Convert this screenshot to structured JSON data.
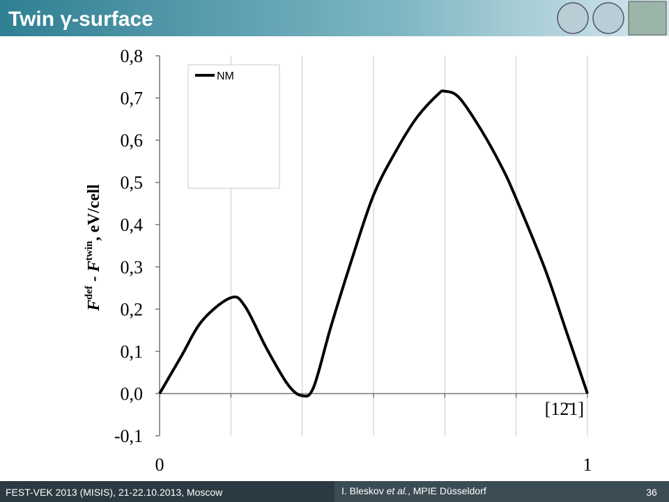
{
  "header": {
    "title": "Twin γ-surface"
  },
  "footer": {
    "event": "FEST-VEK 2013 (MISIS), 21-22.10.2013, Moscow",
    "author": [
      "I. Bleskov ",
      "et al.",
      ", MPIE Düsseldorf"
    ],
    "page": "36"
  },
  "chart_data": {
    "type": "line",
    "ylabel": [
      "F",
      "def",
      " - F",
      "twin",
      ", eV/cell"
    ],
    "annotation": "[12̄1]",
    "x": [
      0,
      0.05,
      0.1,
      0.1667,
      0.2,
      0.25,
      0.3,
      0.3333,
      0.36,
      0.4,
      0.45,
      0.5,
      0.55,
      0.6,
      0.65,
      0.6667,
      0.7,
      0.75,
      0.8,
      0.8333,
      0.9,
      0.95,
      1
    ],
    "series": [
      {
        "name": "NM",
        "color": "#000000",
        "values": [
          0,
          0.087,
          0.173,
          0.227,
          0.206,
          0.107,
          0.021,
          -0.005,
          0.015,
          0.157,
          0.32,
          0.47,
          0.57,
          0.652,
          0.708,
          0.716,
          0.701,
          0.627,
          0.536,
          0.462,
          0.297,
          0.149,
          0
        ]
      }
    ],
    "xlim": [
      0,
      1
    ],
    "xticks": [
      0,
      1
    ],
    "xgrid": [
      0,
      0.1667,
      0.3333,
      0.5,
      0.6667,
      0.8333,
      1
    ],
    "ylim": [
      -0.1,
      0.8
    ],
    "yticks": [
      {
        "value": -0.1,
        "label": "-0,1"
      },
      {
        "value": 0,
        "label": "0,0"
      },
      {
        "value": 0.1,
        "label": "0,1"
      },
      {
        "value": 0.2,
        "label": "0,2"
      },
      {
        "value": 0.3,
        "label": "0,3"
      },
      {
        "value": 0.4,
        "label": "0,4"
      },
      {
        "value": 0.5,
        "label": "0,5"
      },
      {
        "value": 0.6,
        "label": "0,6"
      },
      {
        "value": 0.7,
        "label": "0,7"
      },
      {
        "value": 0.8,
        "label": "0,8"
      }
    ],
    "grid": "x",
    "legend": "top-left"
  }
}
